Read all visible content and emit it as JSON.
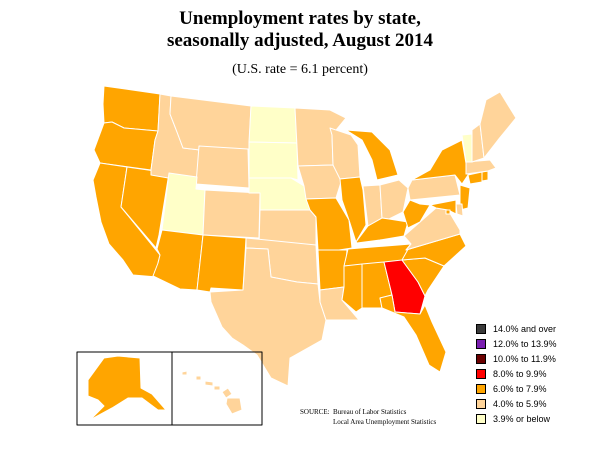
{
  "title_line1": "Unemployment rates by state,",
  "title_line2": "seasonally adjusted, August 2014",
  "subtitle": "(U.S. rate = 6.1 percent)",
  "legend": [
    {
      "label": "14.0% and over",
      "color": "#3a3a3a"
    },
    {
      "label": "12.0% to 13.9%",
      "color": "#7a1fb0"
    },
    {
      "label": "10.0% to 11.9%",
      "color": "#6b0000"
    },
    {
      "label": "8.0% to 9.9%",
      "color": "#ff0000"
    },
    {
      "label": "6.0% to 7.9%",
      "color": "#ffa500"
    },
    {
      "label": "4.0% to 5.9%",
      "color": "#ffd49a"
    },
    {
      "label": "3.9% or below",
      "color": "#ffffc8"
    }
  ],
  "source": {
    "label": "SOURCE:",
    "line1": "Bureau of Labor Statistics",
    "line2": "Local Area Unemployment Statistics"
  },
  "state_class": {
    "WA": "6.0% to 7.9%",
    "OR": "6.0% to 7.9%",
    "CA": "6.0% to 7.9%",
    "NV": "6.0% to 7.9%",
    "ID": "4.0% to 5.9%",
    "MT": "4.0% to 5.9%",
    "WY": "4.0% to 5.9%",
    "UT": "3.9% or below",
    "AZ": "6.0% to 7.9%",
    "CO": "4.0% to 5.9%",
    "NM": "6.0% to 7.9%",
    "ND": "3.9% or below",
    "SD": "3.9% or below",
    "NE": "3.9% or below",
    "KS": "4.0% to 5.9%",
    "OK": "4.0% to 5.9%",
    "TX": "4.0% to 5.9%",
    "MN": "4.0% to 5.9%",
    "IA": "4.0% to 5.9%",
    "MO": "6.0% to 7.9%",
    "AR": "6.0% to 7.9%",
    "LA": "4.0% to 5.9%",
    "WI": "4.0% to 5.9%",
    "IL": "6.0% to 7.9%",
    "MI": "6.0% to 7.9%",
    "IN": "4.0% to 5.9%",
    "OH": "4.0% to 5.9%",
    "KY": "6.0% to 7.9%",
    "TN": "6.0% to 7.9%",
    "MS": "6.0% to 7.9%",
    "AL": "6.0% to 7.9%",
    "GA": "8.0% to 9.9%",
    "FL": "6.0% to 7.9%",
    "SC": "6.0% to 7.9%",
    "NC": "6.0% to 7.9%",
    "VA": "4.0% to 5.9%",
    "WV": "6.0% to 7.9%",
    "PA": "4.0% to 5.9%",
    "NY": "6.0% to 7.9%",
    "NJ": "6.0% to 7.9%",
    "DE": "4.0% to 5.9%",
    "MD": "6.0% to 7.9%",
    "DC": "6.0% to 7.9%",
    "CT": "6.0% to 7.9%",
    "RI": "6.0% to 7.9%",
    "MA": "4.0% to 5.9%",
    "VT": "3.9% or below",
    "NH": "4.0% to 5.9%",
    "ME": "4.0% to 5.9%",
    "AK": "6.0% to 7.9%",
    "HI": "4.0% to 5.9%"
  }
}
